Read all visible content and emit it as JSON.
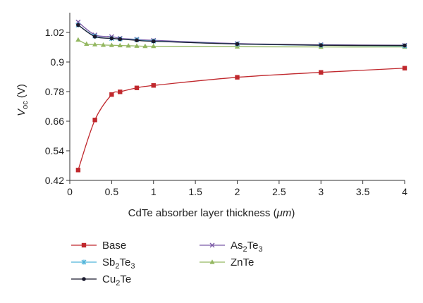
{
  "chart_data": {
    "type": "line",
    "xlabel_main": "CdTe absorber layer thickness (",
    "xlabel_unit": "μm",
    "xlabel_close": ")",
    "ylabel_var": "V",
    "ylabel_sub": "oc",
    "ylabel_unit": " (V)",
    "xlim": [
      0,
      4
    ],
    "ylim": [
      0.42,
      1.1
    ],
    "xticks": [
      0,
      0.5,
      1,
      1.5,
      2,
      2.5,
      3,
      3.5,
      4
    ],
    "xtick_labels": [
      "0",
      "0.5",
      "1",
      "1.5",
      "2",
      "2.5",
      "3",
      "3.5",
      "4"
    ],
    "yticks": [
      0.42,
      0.54,
      0.66,
      0.78,
      0.9,
      1.02
    ],
    "ytick_labels": [
      "0.42",
      "0.54",
      "0.66",
      "0.78",
      "0.9",
      "1.02"
    ],
    "legend_placement": "bottom",
    "series": [
      {
        "name": "Base",
        "name_parts": [
          {
            "t": "Base"
          }
        ],
        "color": "#c0282d",
        "marker": "square",
        "x": [
          0.1,
          0.3,
          0.5,
          0.6,
          0.8,
          1,
          2,
          3,
          4
        ],
        "y": [
          0.462,
          0.665,
          0.768,
          0.779,
          0.795,
          0.805,
          0.838,
          0.858,
          0.875
        ]
      },
      {
        "name": "Sb2Te3",
        "name_parts": [
          {
            "t": "Sb"
          },
          {
            "t": "2",
            "sub": true
          },
          {
            "t": "Te"
          },
          {
            "t": "3",
            "sub": true
          }
        ],
        "color": "#4fb3d9",
        "marker": "star",
        "x": [
          0.1,
          0.3,
          0.5,
          0.6,
          0.8,
          1,
          2,
          3,
          4
        ],
        "y": [
          1.05,
          1.005,
          0.995,
          0.993,
          0.99,
          0.985,
          0.973,
          0.968,
          0.965
        ]
      },
      {
        "name": "Cu2Te",
        "name_parts": [
          {
            "t": "Cu"
          },
          {
            "t": "2",
            "sub": true
          },
          {
            "t": "Te"
          }
        ],
        "color": "#1a1a2e",
        "marker": "circle",
        "x": [
          0.1,
          0.3,
          0.5,
          0.6,
          0.8,
          1,
          2,
          3,
          4
        ],
        "y": [
          1.05,
          1.003,
          0.996,
          0.993,
          0.988,
          0.984,
          0.973,
          0.968,
          0.967
        ]
      },
      {
        "name": "As2Te3",
        "name_parts": [
          {
            "t": "As"
          },
          {
            "t": "2",
            "sub": true
          },
          {
            "t": "Te"
          },
          {
            "t": "3",
            "sub": true
          }
        ],
        "color": "#7b5aa6",
        "marker": "x",
        "x": [
          0.1,
          0.3,
          0.5,
          0.6,
          0.8,
          1,
          2,
          3,
          4
        ],
        "y": [
          1.062,
          1.01,
          1.003,
          0.996,
          0.992,
          0.988,
          0.975,
          0.97,
          0.968
        ]
      },
      {
        "name": "ZnTe",
        "name_parts": [
          {
            "t": "ZnTe"
          }
        ],
        "color": "#93b760",
        "marker": "triangle",
        "x": [
          0.1,
          0.2,
          0.3,
          0.4,
          0.5,
          0.6,
          0.7,
          0.8,
          0.9,
          1,
          2,
          3,
          4
        ],
        "y": [
          0.99,
          0.973,
          0.971,
          0.969,
          0.968,
          0.967,
          0.966,
          0.965,
          0.964,
          0.964,
          0.962,
          0.961,
          0.961
        ]
      }
    ],
    "legend_columns": [
      [
        "Base",
        "Sb2Te3",
        "Cu2Te"
      ],
      [
        "As2Te3",
        "ZnTe"
      ]
    ]
  }
}
